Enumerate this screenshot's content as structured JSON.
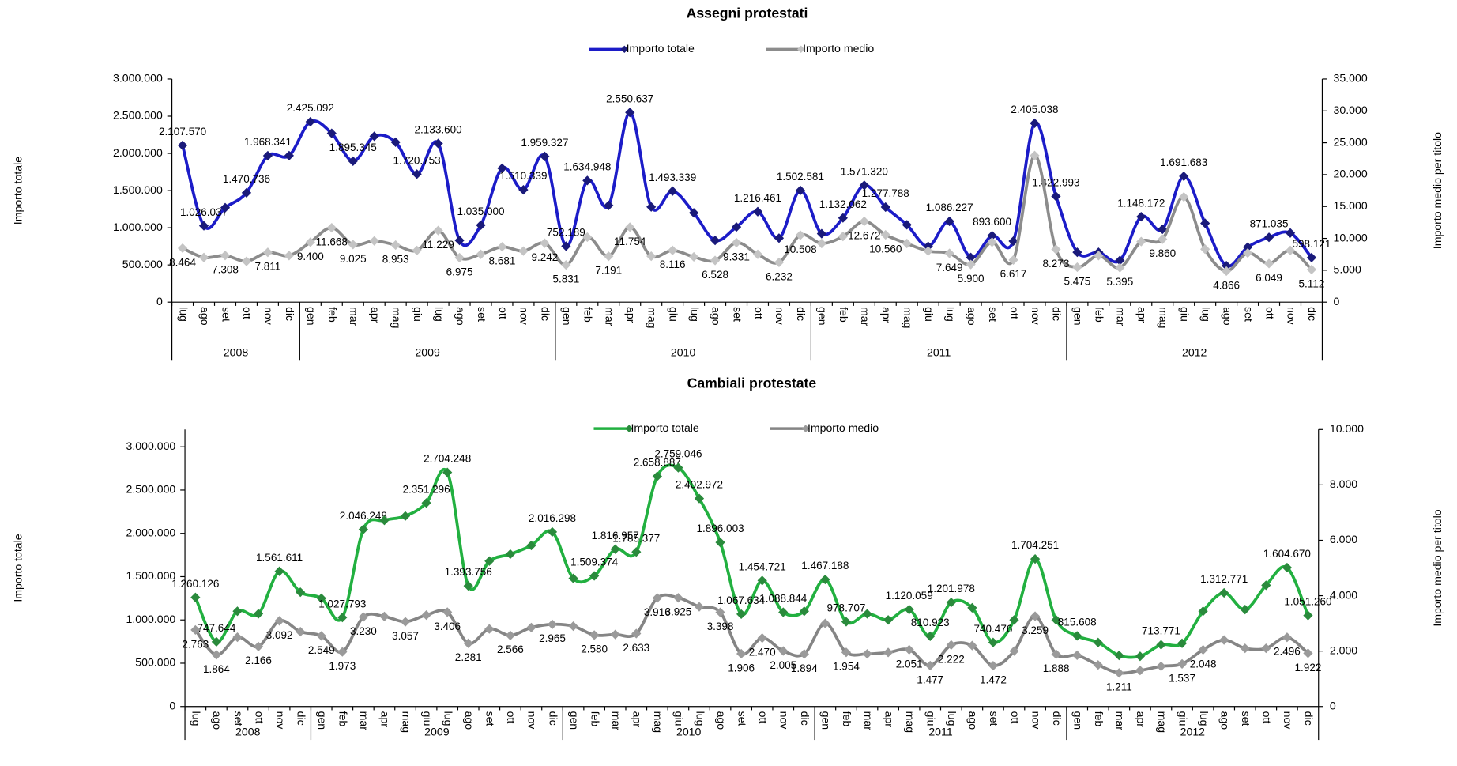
{
  "chart_data": [
    {
      "type": "line",
      "title": "Assegni protestati",
      "legend": "top",
      "y_label": "Importo totale",
      "y2_label": "Importo medio per titolo",
      "category_groups": [
        {
          "label": "2008",
          "categories": [
            "lug",
            "ago",
            "set",
            "ott",
            "nov",
            "dic"
          ]
        },
        {
          "label": "2009",
          "categories": [
            "gen",
            "feb",
            "mar",
            "apr",
            "mag",
            "giu",
            "lug",
            "ago",
            "set",
            "ott",
            "nov",
            "dic"
          ]
        },
        {
          "label": "2010",
          "categories": [
            "gen",
            "feb",
            "mar",
            "apr",
            "mag",
            "giu",
            "lug",
            "ago",
            "set",
            "ott",
            "nov",
            "dic"
          ]
        },
        {
          "label": "2011",
          "categories": [
            "gen",
            "feb",
            "mar",
            "apr",
            "mag",
            "giu",
            "lug",
            "ago",
            "set",
            "ott",
            "nov",
            "dic"
          ]
        },
        {
          "label": "2012",
          "categories": [
            "gen",
            "feb",
            "mar",
            "apr",
            "mag",
            "giu",
            "lug",
            "ago",
            "set",
            "ott",
            "nov",
            "dic"
          ]
        }
      ],
      "ylim": [
        0,
        3000000
      ],
      "yticks": [
        0,
        {
          "value": 500000,
          "label": "500.000"
        },
        {
          "value": 1000000,
          "label": "1.000.000"
        },
        {
          "value": 1500000,
          "label": "1.500.000"
        },
        {
          "value": 2000000,
          "label": "2.000.000"
        },
        {
          "value": 2500000,
          "label": "2.500.000"
        },
        {
          "value": 3000000,
          "label": "3.000.000"
        }
      ],
      "y2lim": [
        0,
        35000
      ],
      "y2ticks": [
        0,
        {
          "value": 5000,
          "label": "5.000"
        },
        {
          "value": 10000,
          "label": "10.000"
        },
        {
          "value": 15000,
          "label": "15.000"
        },
        {
          "value": 20000,
          "label": "20.000"
        },
        {
          "value": 25000,
          "label": "25.000"
        },
        {
          "value": 30000,
          "label": "30.000"
        },
        {
          "value": 35000,
          "label": "35.000"
        }
      ],
      "series": [
        {
          "name": "Importo totale",
          "color": "#1c1cc8",
          "marker_color": "#1a1a7a",
          "axis": "y",
          "values": [
            2107570,
            1026037,
            1270000,
            1470736,
            1968341,
            1970000,
            2425092,
            2270000,
            1895345,
            2230000,
            2150000,
            1720753,
            2133600,
            830000,
            1035000,
            1800000,
            1510339,
            1959327,
            752189,
            1634948,
            1300000,
            2550637,
            1280000,
            1493339,
            1200000,
            830000,
            1010000,
            1216461,
            860000,
            1502581,
            920000,
            1132062,
            1571320,
            1277788,
            1040000,
            750000,
            1086227,
            600000,
            893600,
            820000,
            2405038,
            1422993,
            670000,
            670000,
            560000,
            1148172,
            980000,
            1691683,
            1060000,
            490000,
            740000,
            871035,
            930000,
            598121
          ],
          "value_labels": [
            "2.107.570",
            "1.026.037",
            null,
            "1.470.736",
            "1.968.341",
            null,
            "2.425.092",
            null,
            "1.895.345",
            null,
            null,
            "1.720.753",
            "2.133.600",
            null,
            "1.035.000",
            null,
            "1.510.339",
            "1.959.327",
            "752.189",
            "1.634.948",
            null,
            "2.550.637",
            null,
            "1.493.339",
            null,
            null,
            null,
            "1.216.461",
            null,
            "1.502.581",
            null,
            "1.132.062",
            "1.571.320",
            "1.277.788",
            null,
            null,
            "1.086.227",
            null,
            "893.600",
            null,
            "2.405.038",
            "1.422.993",
            null,
            null,
            null,
            "1.148.172",
            null,
            "1.691.683",
            null,
            null,
            null,
            "871.035",
            null,
            "598.121"
          ]
        },
        {
          "name": "Importo medio",
          "color": "#8c8c8c",
          "marker_color": "#c4c4c4",
          "axis": "y2",
          "values": [
            8464,
            7000,
            7308,
            6400,
            7811,
            7300,
            9400,
            11668,
            9025,
            9600,
            8953,
            8100,
            11229,
            6975,
            7500,
            8681,
            8000,
            9242,
            5831,
            10200,
            7191,
            11754,
            7200,
            8116,
            7100,
            6528,
            9331,
            7500,
            6232,
            10508,
            9200,
            10300,
            12672,
            10560,
            9200,
            8000,
            7649,
            5900,
            9400,
            6617,
            23000,
            8273,
            5475,
            7300,
            5395,
            9500,
            9860,
            16500,
            8300,
            4866,
            7700,
            6049,
            8100,
            5112
          ],
          "value_labels": [
            "8.464",
            null,
            "7.308",
            null,
            "7.811",
            null,
            "9.400",
            "11.668",
            "9.025",
            null,
            "8.953",
            null,
            "11.229",
            "6.975",
            null,
            "8.681",
            null,
            "9.242",
            "5.831",
            null,
            "7.191",
            "11.754",
            null,
            "8.116",
            null,
            "6.528",
            "9.331",
            null,
            "6.232",
            "10.508",
            null,
            null,
            "12.672",
            "10.560",
            null,
            null,
            "7.649",
            "5.900",
            null,
            "6.617",
            null,
            "8.273",
            "5.475",
            null,
            "5.395",
            null,
            "9.860",
            null,
            null,
            "4.866",
            null,
            "6.049",
            null,
            "5.112"
          ]
        }
      ]
    },
    {
      "type": "line",
      "title": "Cambiali protestate",
      "legend": "top",
      "y_label": "Importo totale",
      "y2_label": "Importo medio per titolo",
      "category_groups": [
        {
          "label": "2008",
          "categories": [
            "lug",
            "ago",
            "set",
            "ott",
            "nov",
            "dic"
          ]
        },
        {
          "label": "2009",
          "categories": [
            "gen",
            "feb",
            "mar",
            "apr",
            "mag",
            "giu",
            "lug",
            "ago",
            "set",
            "ott",
            "nov",
            "dic"
          ]
        },
        {
          "label": "2010",
          "categories": [
            "gen",
            "feb",
            "mar",
            "apr",
            "mag",
            "giu",
            "lug",
            "ago",
            "set",
            "ott",
            "nov",
            "dic"
          ]
        },
        {
          "label": "2011",
          "categories": [
            "gen",
            "feb",
            "mar",
            "apr",
            "mag",
            "giu",
            "lug",
            "ago",
            "set",
            "ott",
            "nov",
            "dic"
          ]
        },
        {
          "label": "2012",
          "categories": [
            "gen",
            "feb",
            "mar",
            "apr",
            "mag",
            "giu",
            "lug",
            "ago",
            "set",
            "ott",
            "nov",
            "dic"
          ]
        }
      ],
      "ylim": [
        0,
        3200000
      ],
      "yticks": [
        0,
        {
          "value": 500000,
          "label": "500.000"
        },
        {
          "value": 1000000,
          "label": "1.000.000"
        },
        {
          "value": 1500000,
          "label": "1.500.000"
        },
        {
          "value": 2000000,
          "label": "2.000.000"
        },
        {
          "value": 2500000,
          "label": "2.500.000"
        },
        {
          "value": 3000000,
          "label": "3.000.000"
        }
      ],
      "y2lim": [
        0,
        10000
      ],
      "y2ticks": [
        0,
        {
          "value": 2000,
          "label": "2.000"
        },
        {
          "value": 4000,
          "label": "4.000"
        },
        {
          "value": 6000,
          "label": "6.000"
        },
        {
          "value": 8000,
          "label": "8.000"
        },
        {
          "value": 10000,
          "label": "10.000"
        }
      ],
      "series": [
        {
          "name": "Importo totale",
          "color": "#22b040",
          "marker_color": "#2a8a3c",
          "axis": "y",
          "values": [
            1260126,
            747644,
            1100000,
            1070000,
            1561611,
            1320000,
            1250000,
            1027793,
            2046248,
            2150000,
            2200000,
            2351296,
            2704248,
            1393756,
            1680000,
            1760000,
            1860000,
            2016298,
            1480000,
            1509374,
            1816957,
            1785377,
            2658887,
            2759046,
            2402972,
            1896003,
            1067634,
            1454721,
            1088844,
            1100000,
            1467188,
            978707,
            1070000,
            1000000,
            1120059,
            810923,
            1201978,
            1140000,
            740476,
            1000000,
            1704251,
            1000000,
            815608,
            740000,
            590000,
            580000,
            713771,
            730000,
            1100000,
            1312771,
            1120000,
            1400000,
            1604670,
            1051260
          ],
          "value_labels": [
            "1.260.126",
            "747.644",
            null,
            null,
            "1.561.611",
            null,
            null,
            "1.027.793",
            "2.046.248",
            null,
            null,
            "2.351.296",
            "2.704.248",
            "1.393.756",
            null,
            null,
            null,
            "2.016.298",
            null,
            "1.509.374",
            "1.816.957",
            "1.785.377",
            "2.658.887",
            "2.759.046",
            "2.402.972",
            "1.896.003",
            "1.067.634",
            "1.454.721",
            "1.088.844",
            null,
            "1.467.188",
            "978.707",
            null,
            null,
            "1.120.059",
            "810.923",
            "1.201.978",
            null,
            "740.476",
            null,
            "1.704.251",
            null,
            "815.608",
            null,
            null,
            null,
            "713.771",
            null,
            null,
            "1.312.771",
            null,
            null,
            "1.604.670",
            "1.051.260"
          ]
        },
        {
          "name": "Importo medio",
          "color": "#858585",
          "marker_color": "#9a9a9a",
          "axis": "y2",
          "values": [
            2763,
            1864,
            2500,
            2166,
            3092,
            2700,
            2549,
            1973,
            3230,
            3250,
            3057,
            3300,
            3406,
            2281,
            2800,
            2566,
            2850,
            2965,
            2900,
            2580,
            2600,
            2633,
            3916,
            3925,
            3600,
            3398,
            1906,
            2470,
            2005,
            1894,
            3000,
            1954,
            1900,
            1950,
            2051,
            1477,
            2222,
            2200,
            1472,
            2000,
            3259,
            1888,
            1850,
            1500,
            1211,
            1300,
            1450,
            1537,
            2048,
            2400,
            2100,
            2100,
            2496,
            1922
          ],
          "value_labels": [
            "2.763",
            "1.864",
            null,
            "2.166",
            "3.092",
            null,
            "2.549",
            "1.973",
            "3.230",
            null,
            "3.057",
            null,
            "3.406",
            "2.281",
            null,
            "2.566",
            null,
            "2.965",
            null,
            "2.580",
            null,
            "2.633",
            "3.916",
            "3.925",
            null,
            "3.398",
            "1.906",
            "2.470",
            "2.005",
            "1.894",
            null,
            "1.954",
            null,
            null,
            "2.051",
            "1.477",
            "2.222",
            null,
            "1.472",
            null,
            "3.259",
            "1.888",
            null,
            null,
            "1.211",
            null,
            null,
            "1.537",
            "2.048",
            null,
            null,
            null,
            "2.496",
            "1.922"
          ]
        }
      ]
    }
  ]
}
